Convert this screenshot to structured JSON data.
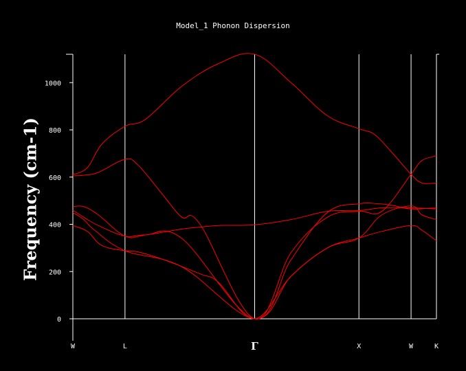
{
  "chart_data": {
    "type": "line",
    "title": "Model_1 Phonon Dispersion",
    "ylabel": "Frequency (cm-1)",
    "xlabel": "",
    "ylim": [
      0,
      1120
    ],
    "yticks": [
      0,
      200,
      400,
      600,
      800,
      1000
    ],
    "grid": false,
    "colors": {
      "background": "#000000",
      "axes": "#ffffff",
      "series": "#ff0000"
    },
    "high_symmetry_points": [
      {
        "label": "W",
        "x": 0.0
      },
      {
        "label": "L",
        "x": 0.1434
      },
      {
        "label": "Γ",
        "x": 0.5
      },
      {
        "label": "X",
        "x": 0.7868
      },
      {
        "label": "W",
        "x": 0.9302
      },
      {
        "label": "K",
        "x": 1.0
      }
    ],
    "series": [
      {
        "x": [
          0,
          0.04,
          0.08,
          0.1434,
          0.2,
          0.3,
          0.4,
          0.5,
          0.6,
          0.7,
          0.7868,
          0.83,
          0.88,
          0.9302,
          0.96,
          1.0
        ],
        "values": [
          610,
          640,
          740,
          815,
          845,
          985,
          1080,
          1120,
          1000,
          860,
          805,
          780,
          700,
          612,
          575,
          575
        ]
      },
      {
        "x": [
          0,
          0.03,
          0.07,
          0.1434,
          0.18,
          0.25,
          0.3,
          0.35,
          0.5,
          0.6,
          0.7,
          0.7868,
          0.85,
          0.9302,
          0.96,
          1.0
        ],
        "values": [
          605,
          608,
          620,
          675,
          650,
          520,
          430,
          400,
          0,
          280,
          430,
          455,
          455,
          612,
          670,
          690
        ]
      },
      {
        "x": [
          0,
          0.03,
          0.07,
          0.1434,
          0.2,
          0.3,
          0.35,
          0.4,
          0.5,
          0.6,
          0.7,
          0.7868,
          0.85,
          0.9302,
          1.0
        ],
        "values": [
          475,
          475,
          440,
          350,
          355,
          380,
          388,
          395,
          398,
          420,
          455,
          458,
          470,
          470,
          465
        ]
      },
      {
        "x": [
          0,
          0.03,
          0.07,
          0.1434,
          0.2,
          0.3,
          0.5,
          0.6,
          0.7,
          0.7868,
          0.84,
          0.88,
          0.9302,
          1.0
        ],
        "values": [
          460,
          430,
          395,
          350,
          355,
          340,
          0,
          250,
          450,
          487,
          487,
          480,
          465,
          470
        ]
      },
      {
        "x": [
          0,
          0.03,
          0.06,
          0.1434,
          0.3,
          0.5,
          0.6,
          0.7,
          0.7868,
          0.85,
          0.9302,
          0.96,
          1.0
        ],
        "values": [
          450,
          420,
          375,
          288,
          220,
          0,
          180,
          300,
          342,
          370,
          395,
          375,
          330
        ]
      },
      {
        "x": [
          0,
          0.04,
          0.08,
          0.1434,
          0.18,
          0.25,
          0.35,
          0.4,
          0.5,
          0.6,
          0.7,
          0.7868,
          0.85,
          0.9302,
          0.96,
          1.0
        ],
        "values": [
          395,
          370,
          310,
          288,
          283,
          250,
          190,
          155,
          0,
          180,
          300,
          342,
          440,
          478,
          440,
          420
        ]
      }
    ]
  }
}
